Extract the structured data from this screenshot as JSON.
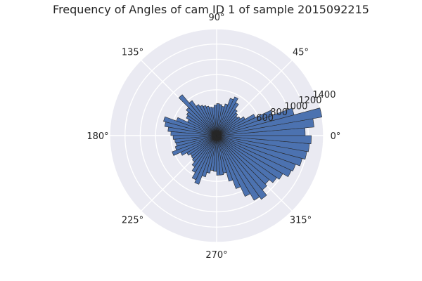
{
  "chart_data": {
    "type": "bar",
    "subtype": "polar-histogram",
    "title": "Frequency of Angles of cam ID 1 of sample 2015092215",
    "angle_labels": [
      "0°",
      "45°",
      "90°",
      "135°",
      "180°",
      "225°",
      "270°",
      "315°"
    ],
    "radial_tick_labels": [
      "600",
      "800",
      "1000",
      "1200",
      "1400"
    ],
    "radial_ticks": [
      200,
      400,
      600,
      800,
      1000,
      1200,
      1400
    ],
    "rlim": [
      0,
      1400
    ],
    "bin_count": 72,
    "bin_width_deg": 5,
    "bin_start_deg": [
      0,
      5,
      10,
      15,
      20,
      25,
      30,
      35,
      40,
      45,
      50,
      55,
      60,
      65,
      70,
      75,
      80,
      85,
      90,
      95,
      100,
      105,
      110,
      115,
      120,
      125,
      130,
      135,
      140,
      145,
      150,
      155,
      160,
      165,
      170,
      175,
      180,
      185,
      190,
      195,
      200,
      205,
      210,
      215,
      220,
      225,
      230,
      235,
      240,
      245,
      250,
      255,
      260,
      265,
      270,
      275,
      280,
      285,
      290,
      295,
      300,
      305,
      310,
      315,
      320,
      325,
      330,
      335,
      340,
      345,
      350,
      355
    ],
    "values": [
      1160,
      1280,
      1400,
      1050,
      780,
      560,
      430,
      380,
      360,
      390,
      420,
      500,
      560,
      520,
      430,
      390,
      410,
      420,
      400,
      370,
      380,
      400,
      420,
      440,
      470,
      560,
      700,
      520,
      480,
      460,
      420,
      560,
      720,
      690,
      640,
      600,
      570,
      550,
      540,
      560,
      620,
      520,
      450,
      420,
      430,
      450,
      500,
      560,
      640,
      680,
      560,
      500,
      460,
      470,
      520,
      520,
      500,
      620,
      740,
      880,
      980,
      1020,
      930,
      900,
      960,
      1000,
      1080,
      1100,
      1160,
      1200,
      1220,
      1240
    ],
    "grid": true,
    "bar_color": "#4c72b0",
    "bar_edge_color": "#262626",
    "plot_background": "#eaeaf2",
    "grid_color": "#ffffff"
  }
}
